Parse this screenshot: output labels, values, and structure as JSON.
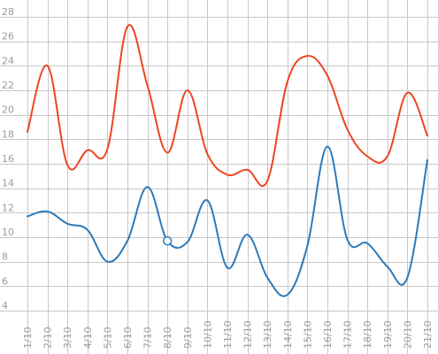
{
  "chart_data": {
    "type": "line",
    "title": "",
    "xlabel": "",
    "ylabel": "",
    "categories": [
      "1/10",
      "2/10",
      "3/10",
      "4/10",
      "5/10",
      "6/10",
      "7/10",
      "8/10",
      "9/10",
      "10/10",
      "11/10",
      "12/10",
      "13/10",
      "14/10",
      "15/10",
      "16/10",
      "17/10",
      "18/10",
      "19/10",
      "20/10",
      "21/10"
    ],
    "ylim": [
      4,
      28
    ],
    "yticks": [
      4,
      6,
      8,
      10,
      12,
      14,
      16,
      18,
      20,
      22,
      24,
      26,
      28
    ],
    "grid": true,
    "legend": "none",
    "series": [
      {
        "color": "#ed4621",
        "values": [
          18.6,
          24.0,
          15.9,
          17.1,
          17.2,
          27.2,
          22.4,
          16.9,
          22.0,
          16.8,
          15.1,
          15.5,
          14.6,
          22.7,
          24.8,
          23.2,
          18.8,
          16.6,
          16.6,
          21.8,
          18.3
        ]
      },
      {
        "color": "#2d7ab9",
        "values": [
          11.7,
          12.1,
          11.1,
          10.6,
          8.0,
          9.7,
          14.1,
          9.7,
          9.6,
          13.0,
          7.5,
          10.2,
          6.7,
          5.3,
          9.3,
          17.4,
          9.8,
          9.5,
          7.6,
          6.7,
          16.3
        ],
        "highlight_index": 7
      }
    ]
  }
}
